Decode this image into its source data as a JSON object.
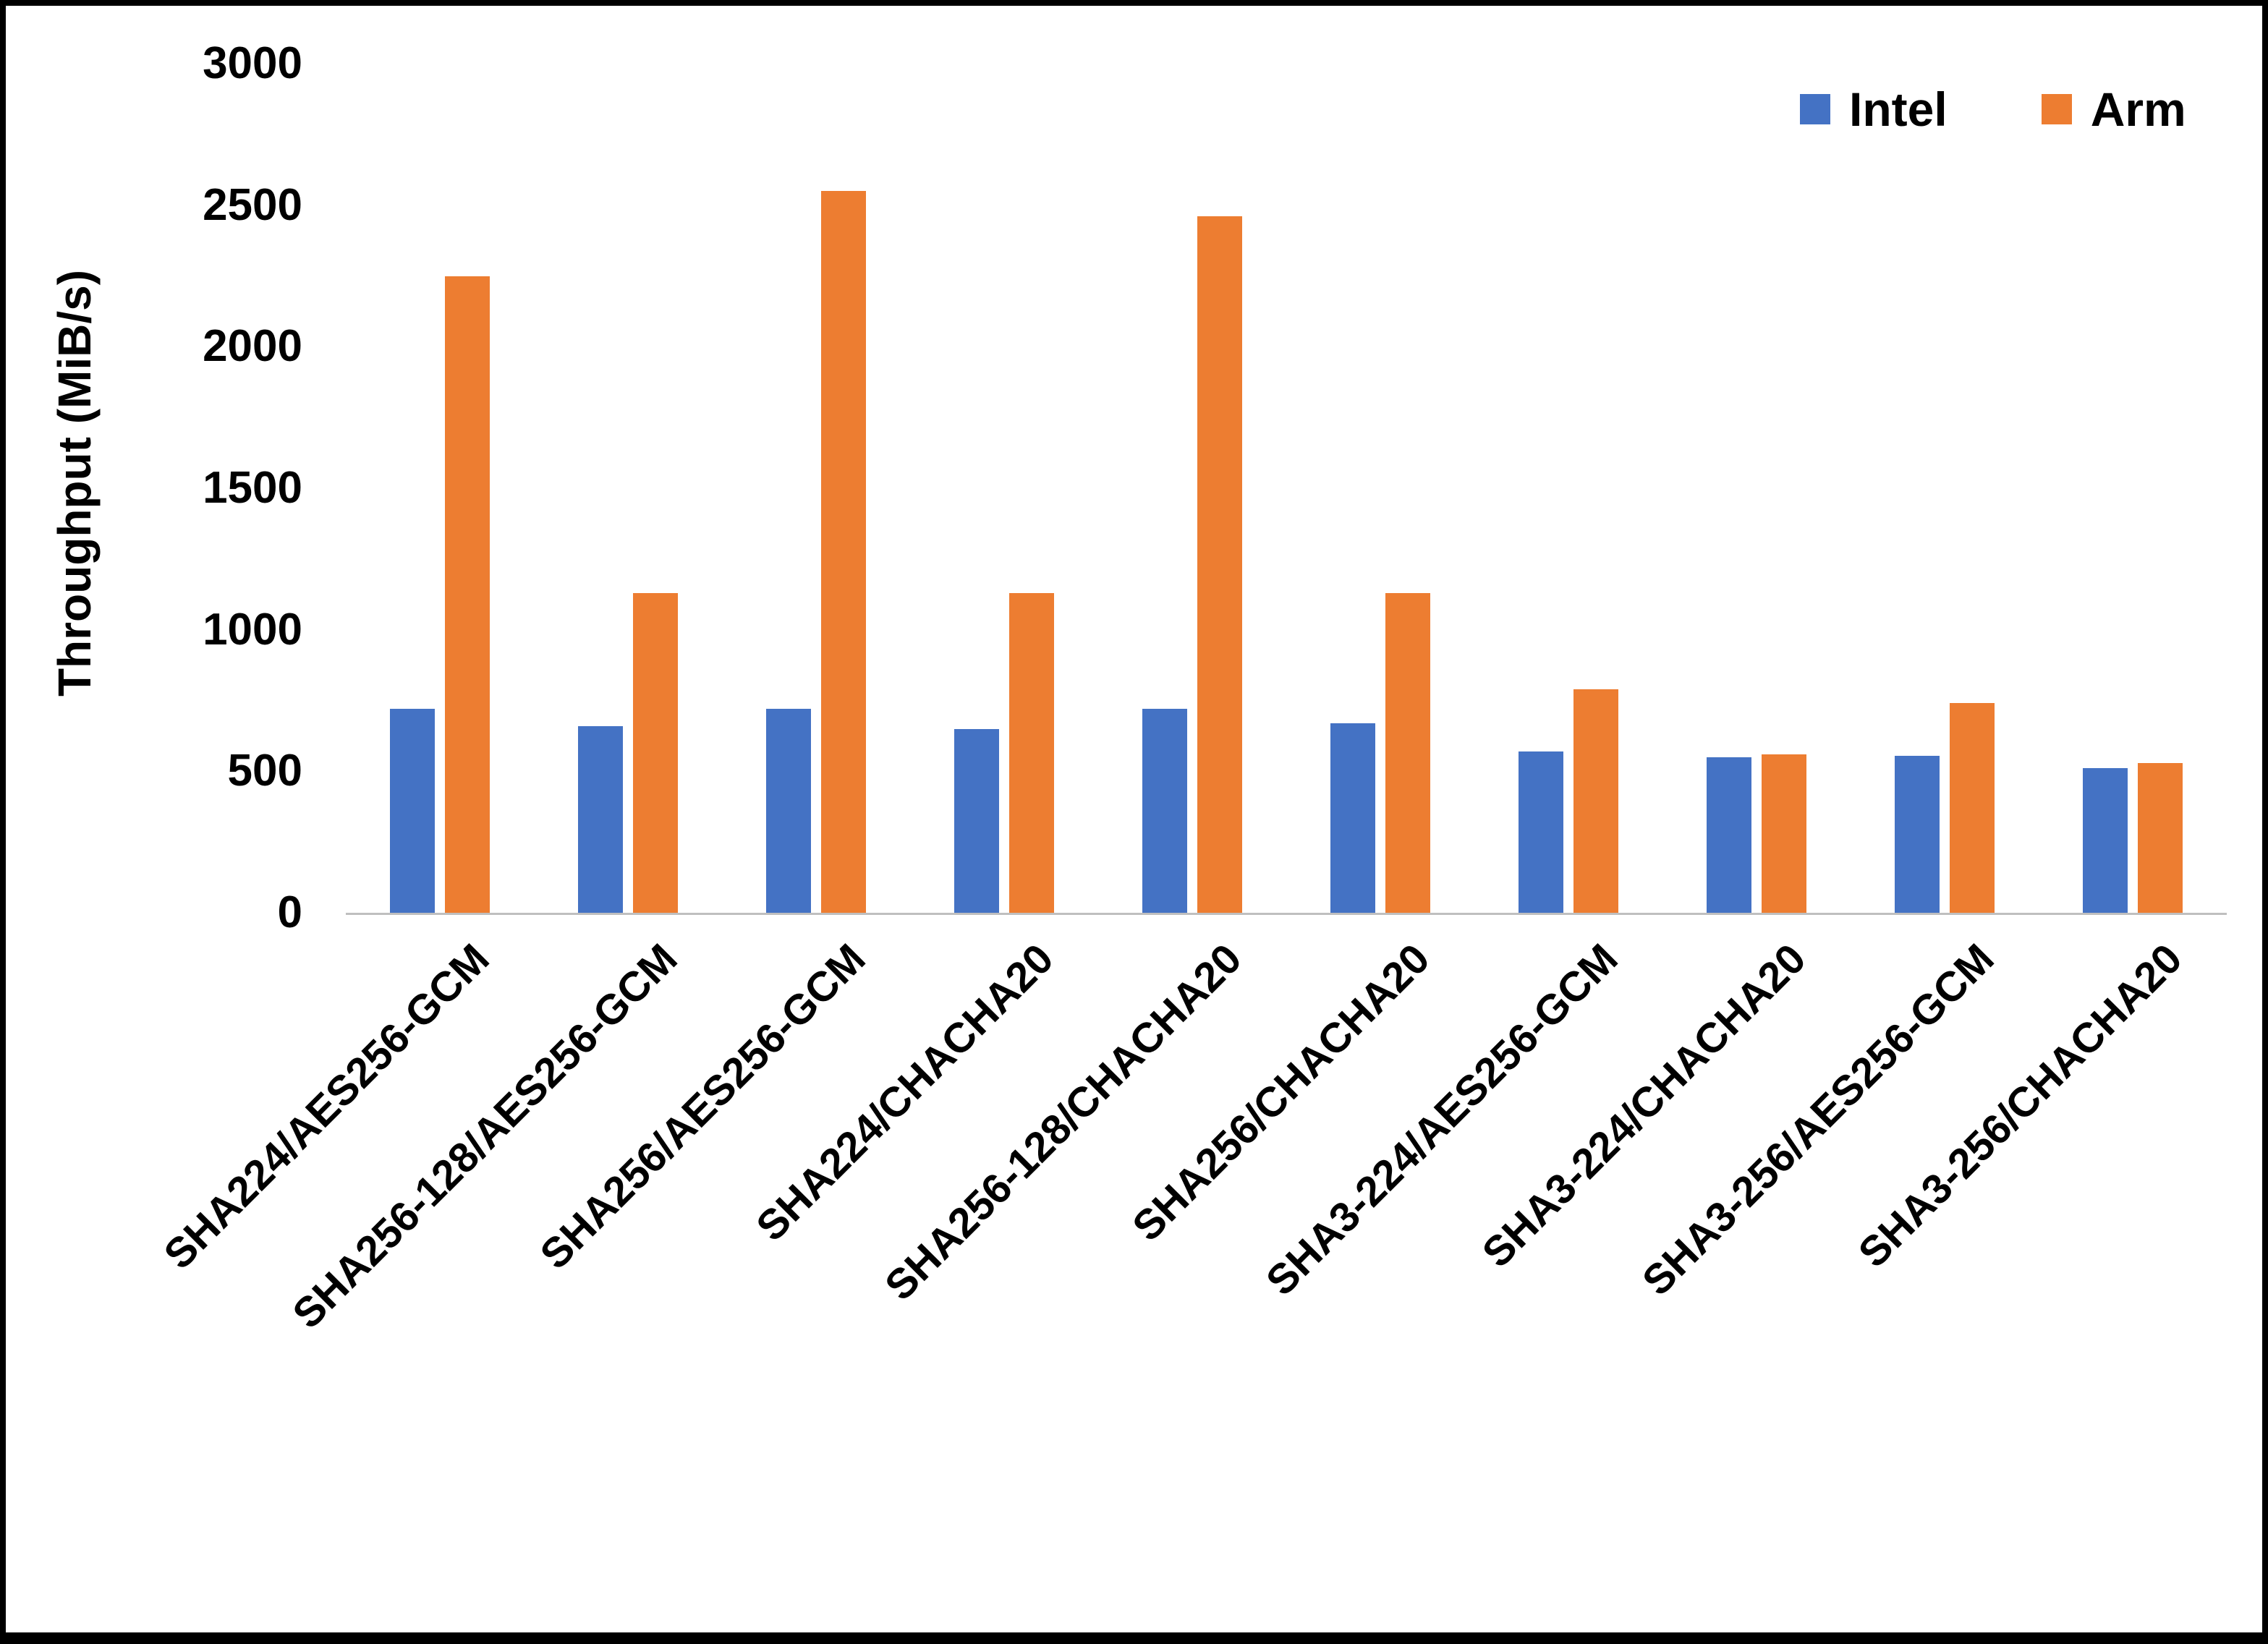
{
  "chart_data": {
    "type": "bar",
    "title": "",
    "xlabel": "",
    "ylabel": "Throughput (MiB/s)",
    "ylim": [
      0,
      3000
    ],
    "yticks": [
      0,
      500,
      1000,
      1500,
      2000,
      2500,
      3000
    ],
    "grid": false,
    "legend_position": "top-right",
    "categories": [
      "SHA224/AES256-GCM",
      "SHA256-128/AES256-GCM",
      "SHA256/AES256-GCM",
      "SHA224/CHACHA20",
      "SHA256-128/CHACHA20",
      "SHA256/CHACHA20",
      "SHA3-224/AES256-GCM",
      "SHA3-224/CHACHA20",
      "SHA3-256/AES256-GCM",
      "SHA3-256/CHACHA20"
    ],
    "series": [
      {
        "name": "Intel",
        "color": "#4472C4",
        "values": [
          720,
          660,
          720,
          650,
          720,
          670,
          570,
          550,
          555,
          510
        ]
      },
      {
        "name": "Arm",
        "color": "#ED7D31",
        "values": [
          2250,
          1130,
          2550,
          1130,
          2460,
          1130,
          790,
          560,
          740,
          530
        ]
      }
    ]
  },
  "colors": {
    "axis_line": "#BFBFBF",
    "text": "#000000",
    "background": "#FFFFFF",
    "frame_border": "#000000"
  }
}
